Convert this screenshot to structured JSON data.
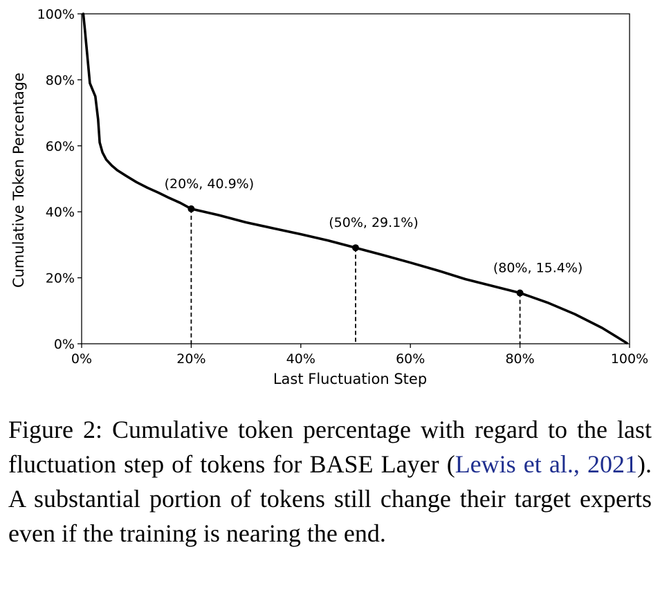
{
  "chart_data": {
    "type": "line",
    "xlabel": "Last Fluctuation Step",
    "ylabel": "Cumulative Token Percentage",
    "xlim": [
      0,
      100
    ],
    "ylim": [
      0,
      100
    ],
    "xticks": [
      0,
      20,
      40,
      60,
      80,
      100
    ],
    "yticks": [
      0,
      20,
      40,
      60,
      80,
      100
    ],
    "xtick_labels": [
      "0%",
      "20%",
      "40%",
      "60%",
      "80%",
      "100%"
    ],
    "ytick_labels": [
      "0%",
      "20%",
      "40%",
      "60%",
      "80%",
      "100%"
    ],
    "grid": false,
    "series": [
      {
        "color": "#000000",
        "points": [
          [
            0.3,
            100
          ],
          [
            0.6,
            95
          ],
          [
            1.0,
            88
          ],
          [
            1.5,
            79
          ],
          [
            2.0,
            77
          ],
          [
            2.5,
            75
          ],
          [
            3.0,
            68
          ],
          [
            3.3,
            61
          ],
          [
            3.8,
            58
          ],
          [
            4.5,
            55.8
          ],
          [
            5.5,
            54
          ],
          [
            6.5,
            52.6
          ],
          [
            8,
            51
          ],
          [
            10,
            49
          ],
          [
            12,
            47.3
          ],
          [
            14,
            45.8
          ],
          [
            16,
            44.2
          ],
          [
            18,
            42.7
          ],
          [
            20,
            40.9
          ],
          [
            25,
            39.0
          ],
          [
            30,
            36.8
          ],
          [
            35,
            35.0
          ],
          [
            40,
            33.2
          ],
          [
            45,
            31.3
          ],
          [
            50,
            29.1
          ],
          [
            55,
            26.9
          ],
          [
            60,
            24.6
          ],
          [
            65,
            22.2
          ],
          [
            70,
            19.6
          ],
          [
            75,
            17.5
          ],
          [
            80,
            15.4
          ],
          [
            85,
            12.5
          ],
          [
            90,
            9.0
          ],
          [
            95,
            4.8
          ],
          [
            99.5,
            0.2
          ]
        ]
      }
    ],
    "annotations": [
      {
        "x": 20,
        "y": 40.9,
        "label": "(20%, 40.9%)"
      },
      {
        "x": 50,
        "y": 29.1,
        "label": "(50%, 29.1%)"
      },
      {
        "x": 80,
        "y": 15.4,
        "label": "(80%, 15.4%)"
      }
    ]
  },
  "caption": {
    "prefix": "Figure 2:  Cumulative token percentage with regard to the last fluctuation step of tokens for BASE Layer (",
    "citation": "Lewis et al., 2021",
    "suffix": ").  A substantial portion of tokens still change their target experts even if the training is nearing the end."
  }
}
